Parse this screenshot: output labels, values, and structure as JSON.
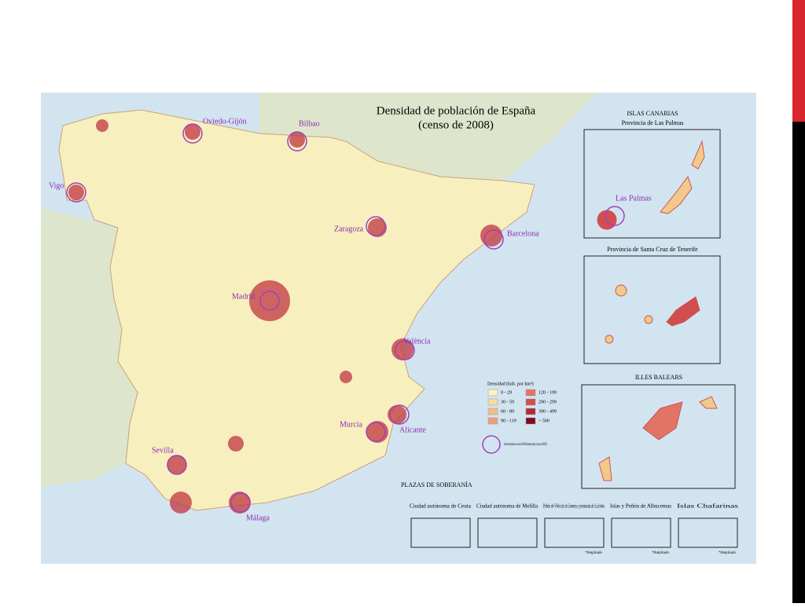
{
  "map": {
    "title": "Densidad de población de España",
    "subtitle": "(censo de 2008)",
    "cities": [
      "Oviedo-Gijón",
      "Bilbao",
      "Vigo",
      "Zaragoza",
      "Barcelona",
      "Madrid",
      "València",
      "Murcia",
      "Alicante",
      "Sevilla",
      "Málaga",
      "Las Palmas"
    ],
    "insets": {
      "canarias": "ISLAS CANARIAS",
      "las_palmas": "Provincia de Las Palmas",
      "tenerife": "Provincia de Santa Cruz de Tenerife",
      "baleares": "ILLES BALEARS"
    },
    "plazas": {
      "title": "PLAZAS DE SOBERANÍA",
      "items": [
        "Ciudad autónoma de Ceuta",
        "Ciudad autónoma de Melilla",
        "Peñón de Vélez de la Gomera y península de La Isleta",
        "Islas y Peñón de Alhucemas",
        "Islas Chafarinas"
      ],
      "note": "*Ampliado"
    },
    "legend": {
      "title": "Densidad (hab. por km²)",
      "items": [
        {
          "label": "0 - 29",
          "color": "#fbf3c2"
        },
        {
          "label": "30 - 59",
          "color": "#f7dc9c"
        },
        {
          "label": "60 - 89",
          "color": "#f3bd84"
        },
        {
          "label": "90 - 119",
          "color": "#ee9f7a"
        },
        {
          "label": "120 - 199",
          "color": "#e27466"
        },
        {
          "label": "200 - 299",
          "color": "#d24d4d"
        },
        {
          "label": "300 - 499",
          "color": "#b52a38"
        },
        {
          "label": "> 500",
          "color": "#7e0d1e"
        }
      ],
      "metro": "Áreas metropolitanas con más de 400 000 habitantes (según el proyecto AUDES5)"
    }
  }
}
